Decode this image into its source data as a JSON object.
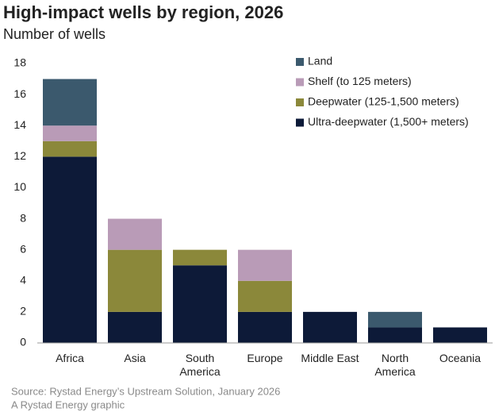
{
  "chart_data": {
    "type": "stacked_bar",
    "title": "High-impact wells by region, 2026",
    "subtitle": "Number of wells",
    "categories": [
      "Africa",
      "Asia",
      "South America",
      "Europe",
      "Middle East",
      "North America",
      "Oceania"
    ],
    "series": [
      {
        "name": "Ultra-deepwater (1,500+ meters)",
        "color": "#0d1a38",
        "values": [
          12,
          2,
          5,
          2,
          2,
          1,
          1
        ]
      },
      {
        "name": "Deepwater (125-1,500 meters)",
        "color": "#8b883a",
        "values": [
          1,
          4,
          1,
          2,
          0,
          0,
          0
        ]
      },
      {
        "name": "Shelf (to 125 meters)",
        "color": "#b99bb7",
        "values": [
          1,
          2,
          0,
          2,
          0,
          0,
          0
        ]
      },
      {
        "name": "Land",
        "color": "#3b596d",
        "values": [
          3,
          0,
          0,
          0,
          0,
          1,
          0
        ]
      }
    ],
    "ylim": [
      0,
      18
    ],
    "yticks": [
      0,
      2,
      4,
      6,
      8,
      10,
      12,
      14,
      16,
      18
    ],
    "legend": "top-right",
    "source": "Source: Rystad Energy’s Upstream Solution, January 2026",
    "credit": "A Rystad Energy graphic"
  }
}
